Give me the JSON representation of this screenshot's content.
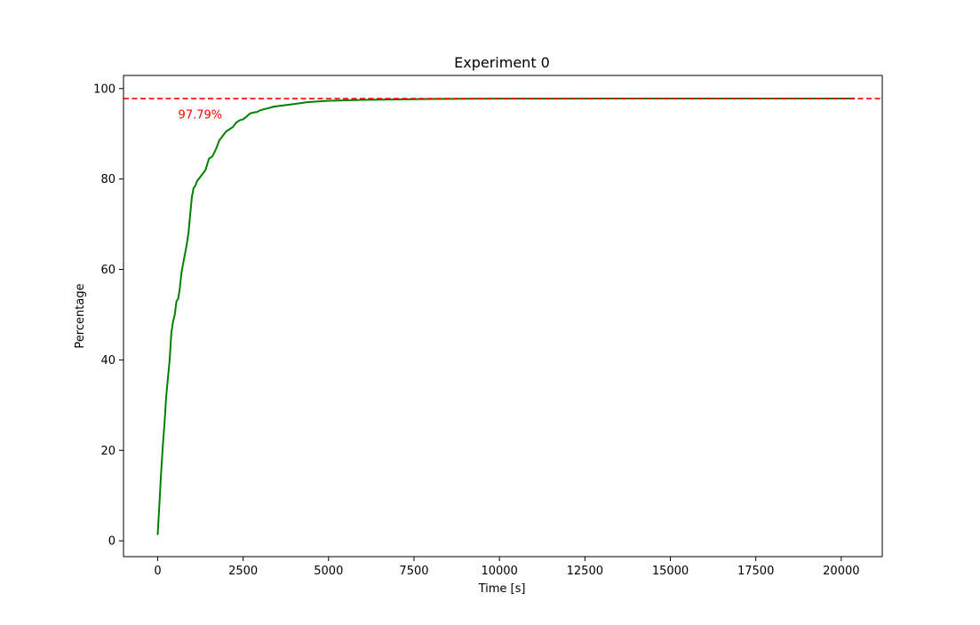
{
  "chart_data": {
    "type": "line",
    "title": "Experiment 0",
    "xlabel": "Time [s]",
    "ylabel": "Percentage",
    "xlim": [
      -1000,
      21200
    ],
    "ylim": [
      -3.5,
      102.9
    ],
    "xticks": [
      0,
      2500,
      5000,
      7500,
      10000,
      12500,
      15000,
      17500,
      20000
    ],
    "yticks": [
      0,
      20,
      40,
      60,
      80,
      100
    ],
    "grid": false,
    "colors": {
      "line": "#008000",
      "reference": "#ff0000",
      "axes": "#000000"
    },
    "series": [
      {
        "x": [
          0,
          50,
          100,
          150,
          200,
          250,
          300,
          350,
          400,
          450,
          500,
          550,
          600,
          650,
          700,
          750,
          800,
          850,
          900,
          950,
          1000,
          1050,
          1100,
          1150,
          1200,
          1250,
          1300,
          1350,
          1400,
          1500,
          1600,
          1700,
          1800,
          1900,
          2000,
          2100,
          2200,
          2300,
          2400,
          2500,
          2600,
          2700,
          2800,
          2900,
          3000,
          3200,
          3400,
          3600,
          3800,
          4000,
          4200,
          4400,
          4600,
          4800,
          5000,
          5500,
          6000,
          6500,
          7000,
          7500,
          8000,
          8500,
          9000,
          10000,
          11000,
          12000,
          13000,
          14000,
          15000,
          16000,
          17000,
          18000,
          19000,
          20000,
          20400
        ],
        "y": [
          1.3,
          8,
          15,
          21,
          26,
          32,
          36,
          40,
          46,
          48.5,
          50,
          53,
          53.5,
          56,
          59.5,
          61.5,
          63.5,
          65.5,
          68,
          72,
          76,
          78,
          78.5,
          79.5,
          80,
          80.5,
          81,
          81.5,
          82,
          84.5,
          85,
          86.5,
          88.5,
          89.5,
          90.5,
          91,
          91.5,
          92.5,
          93,
          93.2,
          93.8,
          94.5,
          94.7,
          94.8,
          95.2,
          95.6,
          96,
          96.2,
          96.4,
          96.6,
          96.8,
          97,
          97.1,
          97.2,
          97.3,
          97.4,
          97.5,
          97.55,
          97.6,
          97.65,
          97.7,
          97.72,
          97.74,
          97.76,
          97.77,
          97.78,
          97.79,
          97.79,
          97.79,
          97.79,
          97.79,
          97.79,
          97.79,
          97.79,
          97.79
        ]
      }
    ],
    "reference_line": {
      "y": 97.79,
      "style": "dashed"
    },
    "annotations": [
      {
        "text": "97.79%",
        "x": 600,
        "y": 94.2
      }
    ]
  }
}
